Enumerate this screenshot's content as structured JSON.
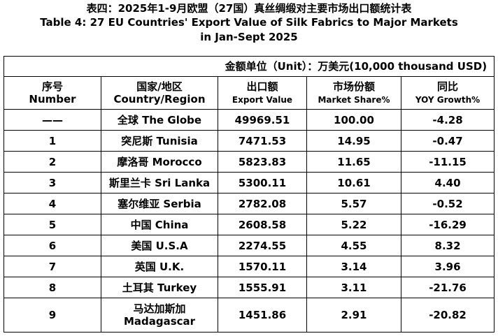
{
  "title": {
    "cn": "表四：2025年1-9月欧盟（27国）真丝绸缎对主要市场出口额统计表",
    "en_line1": "Table 4: 27 EU Countries' Export Value of Silk Fabrics to Major Markets",
    "en_line2": "in Jan-Sept 2025"
  },
  "unit": "金额单位（Unit）：万美元(10,000 thousand USD)",
  "columns": [
    {
      "cn": "序号",
      "en": "Number"
    },
    {
      "cn": "国家/地区",
      "en": "Country/Region"
    },
    {
      "cn": "出口额",
      "en": "Export Value"
    },
    {
      "cn": "市场份额",
      "en": "Market Share%"
    },
    {
      "cn": "同比",
      "en": "YOY Growth%"
    }
  ],
  "rows": [
    {
      "no": "——",
      "country": "全球 The Globe",
      "value": "49969.51",
      "share": "100.00",
      "yoy": "-4.28"
    },
    {
      "no": "1",
      "country": "突尼斯 Tunisia",
      "value": "7471.53",
      "share": "14.95",
      "yoy": "-0.47"
    },
    {
      "no": "2",
      "country": "摩洛哥 Morocco",
      "value": "5823.83",
      "share": "11.65",
      "yoy": "-11.15"
    },
    {
      "no": "3",
      "country": "斯里兰卡 Sri Lanka",
      "value": "5300.11",
      "share": "10.61",
      "yoy": "4.40"
    },
    {
      "no": "4",
      "country": "塞尔维亚 Serbia",
      "value": "2782.08",
      "share": "5.57",
      "yoy": "-0.52"
    },
    {
      "no": "5",
      "country": "中国 China",
      "value": "2608.58",
      "share": "5.22",
      "yoy": "-16.29"
    },
    {
      "no": "6",
      "country": "美国 U.S.A",
      "value": "2274.55",
      "share": "4.55",
      "yoy": "8.32"
    },
    {
      "no": "7",
      "country": "英国 U.K.",
      "value": "1570.11",
      "share": "3.14",
      "yoy": "3.96"
    },
    {
      "no": "8",
      "country": "土耳其 Turkey",
      "value": "1555.91",
      "share": "3.11",
      "yoy": "-21.76"
    },
    {
      "no": "9",
      "country_cn": "马达加斯加",
      "country_en": "Madagascar",
      "value": "1451.86",
      "share": "2.91",
      "yoy": "-20.82"
    }
  ]
}
